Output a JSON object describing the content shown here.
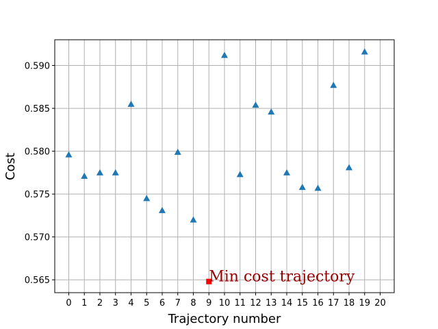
{
  "chart_data": {
    "type": "scatter",
    "xlabel": "Trajectory number",
    "ylabel": "Cost",
    "xlim": [
      -0.9,
      20.9
    ],
    "ylim": [
      0.5635,
      0.593
    ],
    "x_ticks": [
      "0",
      "1",
      "2",
      "3",
      "4",
      "5",
      "6",
      "7",
      "8",
      "9",
      "10",
      "11",
      "12",
      "13",
      "14",
      "15",
      "16",
      "17",
      "18",
      "19",
      "20"
    ],
    "y_ticks": [
      "0.565",
      "0.570",
      "0.575",
      "0.580",
      "0.585",
      "0.590"
    ],
    "grid": true,
    "series": [
      {
        "marker": "triangle",
        "color": "#1f77b4",
        "x": [
          0,
          1,
          2,
          3,
          4,
          5,
          6,
          7,
          8,
          10,
          11,
          12,
          13,
          14,
          15,
          16,
          17,
          18,
          19
        ],
        "y": [
          0.5796,
          0.5771,
          0.5775,
          0.5775,
          0.5855,
          0.5745,
          0.5731,
          0.5799,
          0.572,
          0.5912,
          0.5773,
          0.5854,
          0.5846,
          0.5775,
          0.5758,
          0.5757,
          0.5877,
          0.5781,
          0.5916
        ]
      }
    ],
    "highlight": {
      "x": 9,
      "y": 0.5648,
      "color": "#ff0000",
      "marker": "square"
    },
    "annotation": {
      "text": "Min cost trajectory",
      "x": 9,
      "y": 0.5648,
      "color": "#990000"
    }
  }
}
